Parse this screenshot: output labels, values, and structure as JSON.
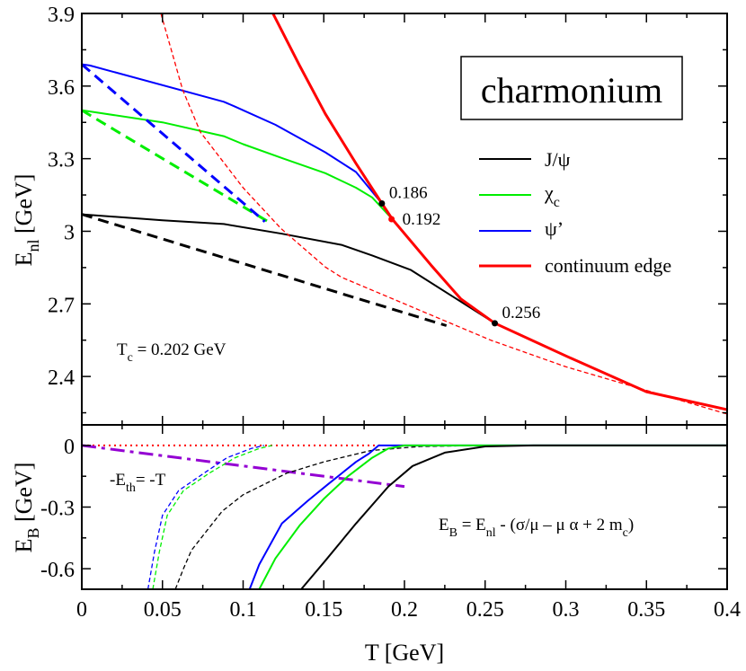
{
  "chart_data": [
    {
      "type": "line",
      "panel": "top",
      "title": "charmonium",
      "xlabel": "T [GeV]",
      "ylabel": {
        "main": "E",
        "sub": "nl",
        "unit": " [GeV]"
      },
      "xlim": [
        0,
        0.4
      ],
      "ylim": [
        2.2,
        3.9
      ],
      "yticks": [
        "3.9",
        "3.6",
        "3.3",
        "3",
        "2.7",
        "2.4"
      ],
      "ytick_values": [
        3.9,
        3.6,
        3.3,
        3.0,
        2.7,
        2.4
      ],
      "legend": {
        "placement": "right",
        "entries": [
          {
            "label": "J/ψ",
            "color": "#000000"
          },
          {
            "label": "χ",
            "sub": "c",
            "color": "#00ee00"
          },
          {
            "label": "ψ’",
            "color": "#0000ff"
          },
          {
            "label": "continuum edge",
            "color": "#ff0000"
          }
        ]
      },
      "series": [
        {
          "name": "J/ψ",
          "color": "#000000",
          "style": "solid",
          "points": [
            [
              0,
              3.07
            ],
            [
              0.05,
              3.045
            ],
            [
              0.088,
              3.03
            ],
            [
              0.124,
              2.99
            ],
            [
              0.161,
              2.944
            ],
            [
              0.18,
              2.9
            ],
            [
              0.204,
              2.84
            ],
            [
              0.23,
              2.73
            ],
            [
              0.256,
              2.62
            ]
          ]
        },
        {
          "name": "χc",
          "color": "#00ee00",
          "style": "solid",
          "points": [
            [
              0,
              3.5
            ],
            [
              0.05,
              3.45
            ],
            [
              0.088,
              3.393
            ],
            [
              0.1,
              3.36
            ],
            [
              0.125,
              3.3
            ],
            [
              0.151,
              3.24
            ],
            [
              0.17,
              3.18
            ],
            [
              0.18,
              3.14
            ],
            [
              0.1925,
              3.05
            ]
          ]
        },
        {
          "name": "ψ’",
          "color": "#0000ff",
          "style": "solid",
          "points": [
            [
              0,
              3.69
            ],
            [
              0.005,
              3.685
            ],
            [
              0.088,
              3.535
            ],
            [
              0.095,
              3.515
            ],
            [
              0.12,
              3.44
            ],
            [
              0.151,
              3.326
            ],
            [
              0.17,
              3.245
            ],
            [
              0.186,
              3.115
            ]
          ]
        },
        {
          "name": "continuum edge",
          "color": "#ff0000",
          "style": "solid",
          "points": [
            [
              0.1185,
              3.9
            ],
            [
              0.135,
              3.685
            ],
            [
              0.151,
              3.485
            ],
            [
              0.17,
              3.28
            ],
            [
              0.186,
              3.115
            ],
            [
              0.1925,
              3.05
            ],
            [
              0.2165,
              2.86
            ],
            [
              0.235,
              2.72
            ],
            [
              0.256,
              2.62
            ],
            [
              0.3,
              2.485
            ],
            [
              0.35,
              2.337
            ],
            [
              0.4,
              2.263
            ]
          ]
        },
        {
          "color": "#ff0000",
          "style": "dashed-thin",
          "points": [
            [
              0.049,
              3.9
            ],
            [
              0.0625,
              3.585
            ],
            [
              0.0735,
              3.41
            ],
            [
              0.1,
              3.18
            ],
            [
              0.1235,
              3.011
            ],
            [
              0.151,
              2.852
            ],
            [
              0.161,
              2.81
            ],
            [
              0.2535,
              2.55
            ],
            [
              0.3,
              2.44
            ],
            [
              0.4,
              2.245
            ]
          ]
        },
        {
          "color": "#000000",
          "style": "dashed",
          "points": [
            [
              0,
              3.07
            ],
            [
              0.226,
              2.61
            ]
          ]
        },
        {
          "color": "#00ee00",
          "style": "dashed",
          "points": [
            [
              0,
              3.5
            ],
            [
              0.118,
              3.03
            ]
          ]
        },
        {
          "color": "#0000ff",
          "style": "dashed",
          "points": [
            [
              0,
              3.69
            ],
            [
              0.1135,
              3.04
            ]
          ]
        }
      ],
      "markers": [
        {
          "x": 0.186,
          "y": 3.115,
          "label": "0.186",
          "color": "#000000"
        },
        {
          "x": 0.192,
          "y": 3.05,
          "label": "0.192",
          "color": "#ff0000"
        },
        {
          "x": 0.256,
          "y": 2.62,
          "label": "0.256",
          "color": "#000000"
        }
      ],
      "annotations": [
        {
          "text": "T",
          "sub": "c",
          "rest": " = 0.202 GeV"
        }
      ]
    },
    {
      "type": "line",
      "panel": "bottom",
      "xlabel": "T [GeV]",
      "ylabel": {
        "main": "E",
        "sub": "B",
        "unit": " [GeV]"
      },
      "xlim": [
        0,
        0.4
      ],
      "ylim": [
        -0.7,
        0.1
      ],
      "xticks": [
        "0",
        "0.05",
        "0.1",
        "0.15",
        "0.2",
        "0.25",
        "0.3",
        "0.35",
        "0.4"
      ],
      "xtick_values": [
        0,
        0.05,
        0.1,
        0.15,
        0.2,
        0.25,
        0.3,
        0.35,
        0.4
      ],
      "yticks": [
        "0",
        "-0.3",
        "-0.6"
      ],
      "ytick_values": [
        0,
        -0.3,
        -0.6
      ],
      "series": [
        {
          "color": "#ff0000",
          "style": "dotted",
          "points": [
            [
              0,
              0
            ],
            [
              0.185,
              0
            ]
          ]
        },
        {
          "color": "#9400d3",
          "style": "dashdot",
          "points": [
            [
              0,
              0
            ],
            [
              0.2,
              -0.2
            ]
          ]
        },
        {
          "color": "#0000ff",
          "style": "dashed-thin",
          "points": [
            [
              0.041,
              -0.7
            ],
            [
              0.045,
              -0.52
            ],
            [
              0.05,
              -0.34
            ],
            [
              0.06,
              -0.22
            ],
            [
              0.0757,
              -0.135
            ],
            [
              0.09,
              -0.06
            ],
            [
              0.105,
              -0.015
            ],
            [
              0.113,
              0
            ]
          ]
        },
        {
          "color": "#00ee00",
          "style": "dashed-thin",
          "points": [
            [
              0.044,
              -0.7
            ],
            [
              0.048,
              -0.52
            ],
            [
              0.053,
              -0.34
            ],
            [
              0.063,
              -0.22
            ],
            [
              0.079,
              -0.135
            ],
            [
              0.095,
              -0.06
            ],
            [
              0.11,
              -0.015
            ],
            [
              0.118,
              0
            ]
          ]
        },
        {
          "color": "#000000",
          "style": "dashed-thin",
          "points": [
            [
              0.058,
              -0.7
            ],
            [
              0.063,
              -0.6
            ],
            [
              0.068,
              -0.51
            ],
            [
              0.078,
              -0.41
            ],
            [
              0.087,
              -0.32
            ],
            [
              0.1,
              -0.24
            ],
            [
              0.127,
              -0.135
            ],
            [
              0.15,
              -0.08
            ],
            [
              0.179,
              -0.025
            ],
            [
              0.21,
              -0.005
            ],
            [
              0.25,
              0
            ],
            [
              0.4,
              0
            ]
          ]
        },
        {
          "color": "#0000ff",
          "style": "solid",
          "points": [
            [
              0.104,
              -0.7
            ],
            [
              0.11,
              -0.58
            ],
            [
              0.124,
              -0.38
            ],
            [
              0.14,
              -0.27
            ],
            [
              0.1525,
              -0.19
            ],
            [
              0.17,
              -0.08
            ],
            [
              0.178,
              -0.04
            ],
            [
              0.184,
              0
            ],
            [
              0.4,
              0
            ]
          ]
        },
        {
          "color": "#00ee00",
          "style": "solid",
          "points": [
            [
              0.11,
              -0.7
            ],
            [
              0.12,
              -0.55
            ],
            [
              0.135,
              -0.39
            ],
            [
              0.15,
              -0.26
            ],
            [
              0.165,
              -0.15
            ],
            [
              0.18,
              -0.06
            ],
            [
              0.19,
              -0.015
            ],
            [
              0.2,
              0
            ],
            [
              0.4,
              0
            ]
          ]
        },
        {
          "color": "#000000",
          "style": "solid",
          "points": [
            [
              0.136,
              -0.7
            ],
            [
              0.15,
              -0.57
            ],
            [
              0.17,
              -0.38
            ],
            [
              0.19,
              -0.2
            ],
            [
              0.205,
              -0.1
            ],
            [
              0.225,
              -0.035
            ],
            [
              0.25,
              -0.005
            ],
            [
              0.28,
              0
            ],
            [
              0.4,
              0
            ]
          ]
        }
      ],
      "annotations": [
        {
          "text": "-E",
          "sub": "th",
          "rest": "= -T"
        },
        {
          "text": "E",
          "sub": "B",
          "mid": " = E",
          "sub2": "nl",
          "rest": " - (σ/μ – μ α + 2 m",
          "sub3": "c",
          "end": ")"
        }
      ]
    }
  ]
}
